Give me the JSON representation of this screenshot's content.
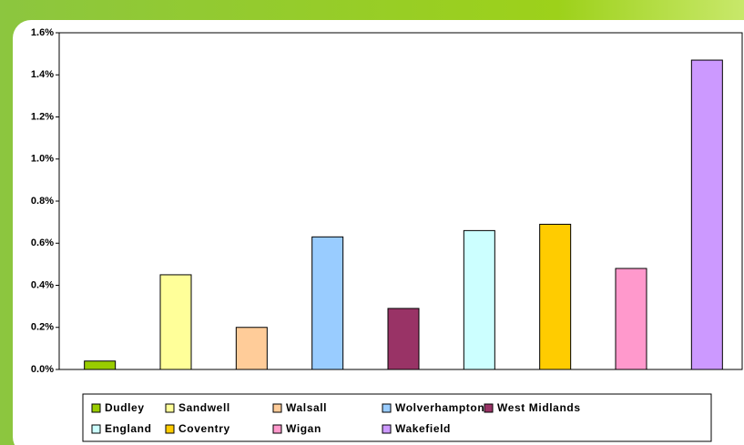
{
  "chart_data": {
    "type": "bar",
    "categories": [
      "Dudley",
      "Sandwell",
      "Walsall",
      "Wolverhampton",
      "West Midlands",
      "England",
      "Coventry",
      "Wigan",
      "Wakefield"
    ],
    "values": [
      0.04,
      0.45,
      0.2,
      0.63,
      0.29,
      0.66,
      0.69,
      0.48,
      1.47
    ],
    "colors": [
      "#99cc00",
      "#ffff99",
      "#ffcc99",
      "#99ccff",
      "#993366",
      "#ccffff",
      "#ffcc00",
      "#ff99cc",
      "#cc99ff"
    ],
    "ylim": [
      0,
      1.6
    ],
    "yticks": [
      {
        "value": 0,
        "label": "0.0%"
      },
      {
        "value": 0.2,
        "label": "0.2%"
      },
      {
        "value": 0.4,
        "label": "0.4%"
      },
      {
        "value": 0.6,
        "label": "0.6%"
      },
      {
        "value": 0.8,
        "label": "0.8%"
      },
      {
        "value": 1.0,
        "label": "1.0%"
      },
      {
        "value": 1.2,
        "label": "1.2%"
      },
      {
        "value": 1.4,
        "label": "1.4%"
      },
      {
        "value": 1.6,
        "label": "1.6%"
      }
    ],
    "grid": false,
    "legend": "bottom"
  }
}
